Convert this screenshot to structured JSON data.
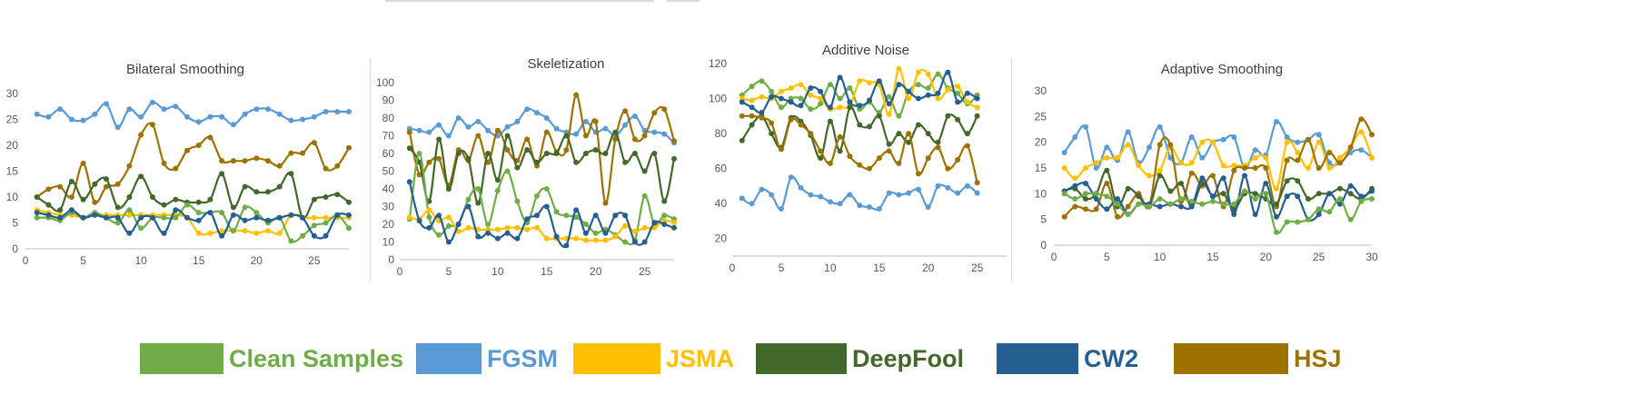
{
  "series_names": [
    "Clean Samples",
    "FGSM",
    "JSMA",
    "DeepFool",
    "CW2",
    "HSJ"
  ],
  "colors": {
    "Clean Samples": "#70ad47",
    "FGSM": "#5b9bd5",
    "JSMA": "#ffc000",
    "DeepFool": "#43682b",
    "CW2": "#255e91",
    "HSJ": "#9e7200"
  },
  "legend": [
    {
      "label": "Clean Samples",
      "color": "#70ad47"
    },
    {
      "label": "FGSM",
      "color": "#5b9bd5"
    },
    {
      "label": "JSMA",
      "color": "#ffc000"
    },
    {
      "label": "DeepFool",
      "color": "#43682b"
    },
    {
      "label": "CW2",
      "color": "#255e91"
    },
    {
      "label": "HSJ",
      "color": "#9e7200"
    }
  ],
  "chart_data": [
    {
      "type": "line",
      "title": "Bilateral Smoothing",
      "xlim": [
        0,
        28
      ],
      "ylim": [
        0,
        30
      ],
      "xticks": [
        0,
        5,
        10,
        15,
        20,
        25
      ],
      "yticks": [
        0,
        5,
        10,
        15,
        20,
        25,
        30
      ],
      "x": [
        1,
        2,
        3,
        4,
        5,
        6,
        7,
        8,
        9,
        10,
        11,
        12,
        13,
        14,
        15,
        16,
        17,
        18,
        19,
        20,
        21,
        22,
        23,
        24,
        25,
        26,
        27,
        28
      ],
      "series": [
        {
          "name": "FGSM",
          "values": [
            26,
            25.5,
            27,
            25,
            24.8,
            26,
            28,
            23.5,
            27,
            25.5,
            28.3,
            27,
            27.5,
            25.5,
            24.5,
            25.5,
            25.5,
            24,
            26,
            27,
            27,
            26,
            24.8,
            25,
            25.5,
            26.5,
            26.5,
            26.5
          ]
        },
        {
          "name": "HSJ",
          "values": [
            10,
            11.5,
            12,
            10,
            16.5,
            9,
            12,
            12.5,
            16,
            22,
            24,
            16.5,
            15.5,
            19,
            20,
            21.5,
            17,
            17,
            17,
            17.5,
            17,
            16,
            18.5,
            18.5,
            20.5,
            15.5,
            16,
            19.5
          ]
        },
        {
          "name": "DeepFool",
          "values": [
            10,
            8.5,
            7.5,
            13,
            9.5,
            12.5,
            13.5,
            8,
            10,
            14,
            10,
            8.5,
            9.5,
            9,
            9,
            9.5,
            14.5,
            8,
            12,
            11,
            11,
            12,
            14.5,
            6,
            9.5,
            10,
            10.5,
            9
          ]
        },
        {
          "name": "JSMA",
          "values": [
            7.5,
            7,
            6.5,
            6.5,
            6,
            6.5,
            6.5,
            6.5,
            6.5,
            6.5,
            6.5,
            6.5,
            6.5,
            6,
            3,
            3,
            3.5,
            3.5,
            3.5,
            3,
            3.5,
            3,
            6.5,
            6,
            6,
            6,
            6,
            6
          ]
        },
        {
          "name": "Clean Samples",
          "values": [
            6,
            6,
            5.5,
            7,
            6,
            7,
            6,
            5,
            7.5,
            4,
            6,
            6,
            6,
            8.5,
            7,
            7,
            7,
            3.5,
            8,
            7,
            5,
            6,
            1.5,
            2.5,
            4.5,
            5,
            6.5,
            4
          ]
        },
        {
          "name": "CW2",
          "values": [
            7,
            6.5,
            6,
            7.5,
            6,
            6.5,
            6,
            6,
            3,
            6,
            6,
            3,
            7.5,
            6,
            5.5,
            7,
            2.5,
            6.5,
            5.5,
            6,
            5.5,
            6,
            6.5,
            6,
            2.5,
            2.5,
            6.5,
            6.5
          ]
        }
      ]
    },
    {
      "type": "line",
      "title": "Skeletization",
      "xlim": [
        0,
        28
      ],
      "ylim": [
        0,
        100
      ],
      "xticks": [
        0,
        5,
        10,
        15,
        20,
        25
      ],
      "yticks": [
        0,
        10,
        20,
        30,
        40,
        50,
        60,
        70,
        80,
        90,
        100
      ],
      "x": [
        1,
        2,
        3,
        4,
        5,
        6,
        7,
        8,
        9,
        10,
        11,
        12,
        13,
        14,
        15,
        16,
        17,
        18,
        19,
        20,
        21,
        22,
        23,
        24,
        25,
        26,
        27,
        28
      ],
      "series": [
        {
          "name": "FGSM",
          "values": [
            74,
            73,
            72,
            76,
            70,
            80,
            75,
            78,
            73,
            70,
            75,
            78,
            85,
            83,
            80,
            74,
            72,
            71,
            78,
            72,
            74,
            70,
            76,
            81,
            73,
            72,
            71,
            66
          ]
        },
        {
          "name": "HSJ",
          "values": [
            72,
            48,
            55,
            57,
            42,
            62,
            56,
            70,
            55,
            73,
            62,
            56,
            68,
            53,
            72,
            61,
            62,
            93,
            70,
            78,
            32,
            68,
            84,
            68,
            70,
            83,
            85,
            67
          ]
        },
        {
          "name": "DeepFool",
          "values": [
            63,
            55,
            33,
            68,
            40,
            60,
            57,
            32,
            60,
            45,
            70,
            52,
            62,
            55,
            60,
            60,
            70,
            55,
            60,
            62,
            60,
            72,
            55,
            60,
            50,
            60,
            33,
            57
          ]
        },
        {
          "name": "Clean Samples",
          "values": [
            23,
            60,
            24,
            14,
            19,
            20,
            34,
            40,
            20,
            39,
            50,
            33,
            21,
            36,
            40,
            27,
            25,
            24,
            20,
            15,
            17,
            14,
            10,
            11,
            36,
            20,
            25,
            23
          ]
        },
        {
          "name": "JSMA",
          "values": [
            24,
            23,
            28,
            22,
            24,
            16,
            18,
            17,
            17,
            17,
            18,
            18,
            17,
            18,
            12,
            12,
            12,
            12,
            11,
            11,
            11,
            13,
            19,
            16,
            18,
            18,
            22,
            21
          ]
        },
        {
          "name": "CW2",
          "values": [
            44,
            22,
            18,
            25,
            10,
            20,
            30,
            13,
            15,
            12,
            15,
            12,
            23,
            25,
            30,
            13,
            8,
            28,
            15,
            25,
            15,
            25,
            25,
            10,
            10,
            21,
            20,
            18
          ]
        }
      ]
    },
    {
      "type": "line",
      "title": "Additive Noise",
      "xlim": [
        0,
        28
      ],
      "ylim": [
        10,
        120
      ],
      "xticks": [
        0,
        5,
        10,
        15,
        20,
        25
      ],
      "yticks": [
        20,
        40,
        60,
        80,
        100,
        120
      ],
      "x": [
        1,
        2,
        3,
        4,
        5,
        6,
        7,
        8,
        9,
        10,
        11,
        12,
        13,
        14,
        15,
        16,
        17,
        18,
        19,
        20,
        21,
        22,
        23,
        24,
        25
      ],
      "series": [
        {
          "name": "FGSM",
          "values": [
            43,
            40,
            48,
            45,
            37,
            55,
            49,
            45,
            44,
            41,
            40,
            45,
            39,
            38,
            37,
            46,
            45,
            46,
            48,
            38,
            50,
            49,
            46,
            50,
            46
          ]
        },
        {
          "name": "Clean Samples",
          "values": [
            102,
            107,
            110,
            104,
            95,
            100,
            100,
            94,
            97,
            108,
            100,
            106,
            94,
            98,
            92,
            101,
            90,
            104,
            108,
            106,
            114,
            106,
            103,
            97,
            102
          ]
        },
        {
          "name": "JSMA",
          "values": [
            100,
            99,
            101,
            100,
            104,
            106,
            108,
            102,
            100,
            94,
            95,
            96,
            110,
            109,
            108,
            91,
            117,
            100,
            115,
            114,
            100,
            105,
            107,
            98,
            95
          ]
        },
        {
          "name": "CW2",
          "values": [
            98,
            95,
            92,
            101,
            100,
            98,
            96,
            106,
            104,
            95,
            112,
            98,
            96,
            99,
            110,
            97,
            108,
            104,
            100,
            102,
            103,
            115,
            98,
            103,
            100
          ]
        },
        {
          "name": "DeepFool",
          "values": [
            76,
            85,
            90,
            80,
            72,
            89,
            87,
            79,
            66,
            87,
            70,
            95,
            85,
            84,
            90,
            74,
            80,
            75,
            85,
            80,
            75,
            90,
            88,
            80,
            90
          ]
        },
        {
          "name": "HSJ",
          "values": [
            90,
            90,
            89,
            86,
            71,
            88,
            85,
            80,
            70,
            63,
            78,
            67,
            62,
            60,
            66,
            70,
            63,
            80,
            57,
            66,
            72,
            60,
            65,
            73,
            52
          ]
        }
      ]
    },
    {
      "type": "line",
      "title": "Adaptive Smoothing",
      "xlim": [
        0,
        30
      ],
      "ylim": [
        0,
        30
      ],
      "xticks": [
        0,
        5,
        10,
        15,
        20,
        25,
        30
      ],
      "yticks": [
        0,
        5,
        10,
        15,
        20,
        25,
        30
      ],
      "x": [
        1,
        2,
        3,
        4,
        5,
        6,
        7,
        8,
        9,
        10,
        11,
        12,
        13,
        14,
        15,
        16,
        17,
        18,
        19,
        20,
        21,
        22,
        23,
        24,
        25,
        26,
        27,
        28,
        29,
        30
      ],
      "series": [
        {
          "name": "FGSM",
          "values": [
            18,
            21,
            23,
            15,
            19,
            16.5,
            22,
            16,
            19,
            23,
            17,
            16,
            21,
            17,
            20,
            20.5,
            21,
            15,
            18.5,
            17.5,
            24,
            21,
            20,
            20.5,
            21.5,
            16,
            16,
            18,
            18.5,
            17
          ]
        },
        {
          "name": "JSMA",
          "values": [
            15,
            13,
            15,
            16,
            17,
            17,
            19.5,
            15.5,
            13.5,
            14.5,
            19,
            16,
            16,
            20,
            20,
            15.5,
            15.5,
            15.5,
            17,
            17,
            11,
            20,
            18,
            15,
            20,
            15,
            17,
            19,
            22,
            17
          ]
        },
        {
          "name": "HSJ",
          "values": [
            5.5,
            7.5,
            7,
            7,
            12,
            5.5,
            7.5,
            10,
            7.5,
            19.5,
            19.5,
            8.5,
            14,
            11.5,
            13.5,
            7.5,
            14.5,
            15,
            15,
            15,
            7.5,
            16.5,
            16.5,
            20.5,
            15,
            18,
            16,
            19,
            24.5,
            21.5
          ]
        },
        {
          "name": "DeepFool",
          "values": [
            10.5,
            11,
            9,
            10,
            14.5,
            7.5,
            11,
            9.5,
            7.5,
            13.5,
            10.5,
            12,
            7.5,
            12,
            9.5,
            10,
            7,
            10,
            10,
            9,
            8,
            12.5,
            12.5,
            9,
            10,
            10,
            11,
            10,
            9,
            11
          ]
        },
        {
          "name": "CW2",
          "values": [
            10.5,
            11.5,
            12,
            9,
            7,
            9,
            6,
            8,
            8,
            7.5,
            8,
            7.5,
            7.5,
            13,
            9.5,
            13,
            6,
            13.5,
            6,
            12,
            5.5,
            9.5,
            9.5,
            5,
            6,
            10,
            8,
            11.5,
            9.5,
            10.5
          ]
        },
        {
          "name": "Clean Samples",
          "values": [
            10,
            9,
            10,
            10,
            9.5,
            8,
            6,
            8,
            7.5,
            9,
            8,
            9,
            8.5,
            8,
            8.5,
            8,
            8,
            10.5,
            9,
            10,
            2.5,
            4.5,
            4.5,
            5,
            7,
            6.5,
            9,
            5,
            8.5,
            9
          ]
        }
      ]
    }
  ]
}
